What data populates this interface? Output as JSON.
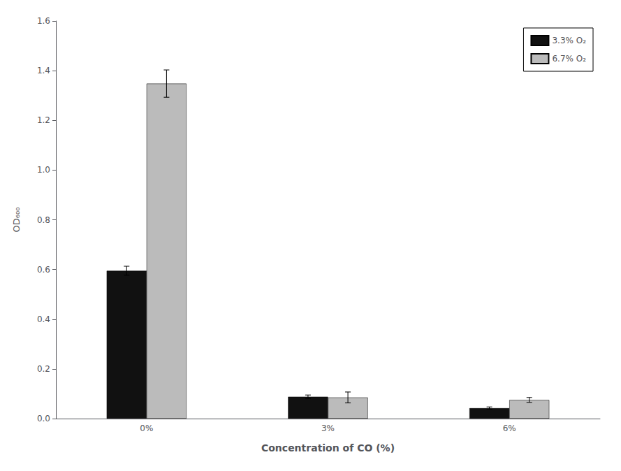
{
  "chart_data": {
    "type": "bar",
    "categories": [
      "0%",
      "3%",
      "6%"
    ],
    "series": [
      {
        "name": "3.3% O₂",
        "color": "#111111",
        "values": [
          0.595,
          0.088,
          0.042
        ],
        "errors": [
          0.018,
          0.007,
          0.005
        ]
      },
      {
        "name": "6.7% O₂",
        "color": "#bbbbbb",
        "values": [
          1.348,
          0.085,
          0.075
        ],
        "errors": [
          0.055,
          0.022,
          0.01
        ]
      }
    ],
    "xlabel": "Concentration of CO (%)",
    "ylabel": "OD₆₀₀",
    "ylim": [
      0,
      1.6
    ],
    "yticks": [
      {
        "value": 0,
        "label": "0.0"
      },
      0.2,
      0.4,
      0.6,
      0.8,
      {
        "value": 1,
        "label": "1.0"
      },
      1.2,
      1.4,
      1.6
    ],
    "grid": false,
    "legend": "upper right"
  }
}
